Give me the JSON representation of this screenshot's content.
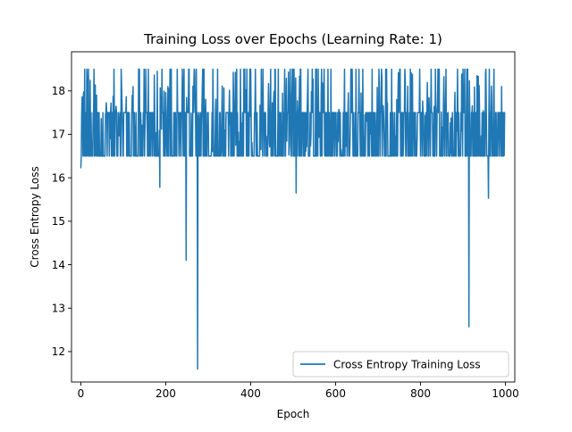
{
  "chart_data": {
    "type": "line",
    "title": "Training Loss over Epochs (Learning Rate: 1)",
    "xlabel": "Epoch",
    "ylabel": "Cross Entropy Loss",
    "xlim": [
      -22,
      1022
    ],
    "ylim": [
      11.3,
      18.9
    ],
    "xticks": [
      0,
      200,
      400,
      600,
      800,
      1000
    ],
    "yticks": [
      12,
      13,
      14,
      15,
      16,
      17,
      18
    ],
    "grid": false,
    "legend": {
      "position": "lower-right"
    },
    "series": [
      {
        "name": "Cross Entropy Training Loss",
        "color": "#1f77b4",
        "epochs": 1000,
        "values_pattern": "oscillates between ~16.5 and ~18.5 with dense band around 17.0-17.5",
        "band": {
          "lower": 16.5,
          "upper": 18.5,
          "dense_lower": 16.5,
          "dense_upper": 17.5
        },
        "start_value": 16.22,
        "end_value": 17.5,
        "notable_dips": [
          {
            "x": 0,
            "y": 16.22
          },
          {
            "x": 186,
            "y": 15.78
          },
          {
            "x": 248,
            "y": 14.1
          },
          {
            "x": 275,
            "y": 11.6
          },
          {
            "x": 507,
            "y": 15.65
          },
          {
            "x": 914,
            "y": 12.57
          },
          {
            "x": 960,
            "y": 15.53
          }
        ],
        "notable_lows_upper_band": [
          {
            "x": 660,
            "y": 17.95
          },
          {
            "x": 709,
            "y": 18.3
          }
        ]
      }
    ]
  }
}
